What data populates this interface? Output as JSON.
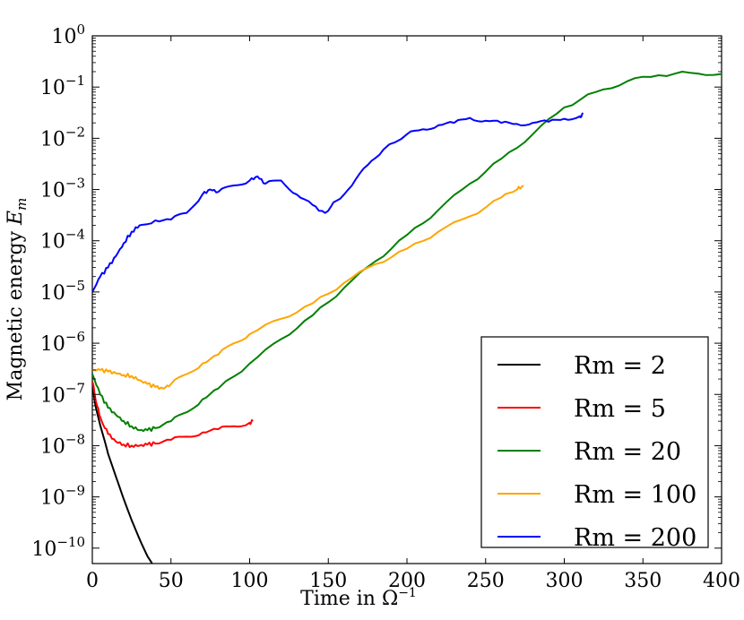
{
  "chart_data": {
    "type": "line",
    "xlabel": "Time in Ω",
    "xlabel_sup": "−1",
    "ylabel": "Magnetic energy",
    "ylabel_var": "E",
    "ylabel_sub": "m",
    "xlim": [
      0,
      400
    ],
    "ylim": [
      5e-11,
      1
    ],
    "yscale": "log",
    "grid": false,
    "legend_position": "bottom-right",
    "x_ticks": [
      {
        "value": 0,
        "label": "0"
      },
      {
        "value": 50,
        "label": "50"
      },
      {
        "value": 100,
        "label": "100"
      },
      {
        "value": 150,
        "label": "150"
      },
      {
        "value": 200,
        "label": "200"
      },
      {
        "value": 250,
        "label": "250"
      },
      {
        "value": 300,
        "label": "300"
      },
      {
        "value": 350,
        "label": "350"
      },
      {
        "value": 400,
        "label": "400"
      }
    ],
    "y_ticks": [
      {
        "exp": -10,
        "base": "10",
        "sup": "−10"
      },
      {
        "exp": -9,
        "base": "10",
        "sup": "−9"
      },
      {
        "exp": -8,
        "base": "10",
        "sup": "−8"
      },
      {
        "exp": -7,
        "base": "10",
        "sup": "−7"
      },
      {
        "exp": -6,
        "base": "10",
        "sup": "−6"
      },
      {
        "exp": -5,
        "base": "10",
        "sup": "−5"
      },
      {
        "exp": -4,
        "base": "10",
        "sup": "−4"
      },
      {
        "exp": -3,
        "base": "10",
        "sup": "−3"
      },
      {
        "exp": -2,
        "base": "10",
        "sup": "−2"
      },
      {
        "exp": -1,
        "base": "10",
        "sup": "−1"
      },
      {
        "exp": 0,
        "base": "10",
        "sup": "0"
      }
    ],
    "series": [
      {
        "name": "Rm = 2",
        "color": "#000000",
        "x": [
          0,
          2,
          5,
          8,
          10,
          15,
          20,
          25,
          30,
          35,
          38,
          40
        ],
        "y": [
          1.5e-07,
          6e-08,
          2.5e-08,
          1.2e-08,
          7e-09,
          2.5e-09,
          9e-10,
          3.5e-10,
          1.5e-10,
          7e-11,
          5e-11,
          4e-11
        ]
      },
      {
        "name": "Rm = 5",
        "color": "#ff0000",
        "x": [
          0,
          3,
          6,
          10,
          15,
          20,
          25,
          30,
          35,
          40,
          50,
          60,
          70,
          80,
          90,
          100,
          102
        ],
        "y": [
          1.8e-07,
          6e-08,
          3e-08,
          1.7e-08,
          1.2e-08,
          1.05e-08,
          1e-08,
          1e-08,
          1.05e-08,
          1.1e-08,
          1.3e-08,
          1.5e-08,
          1.8e-08,
          2.1e-08,
          2.4e-08,
          2.8e-08,
          3e-08
        ]
      },
      {
        "name": "Rm = 20",
        "color": "#008000",
        "x": [
          0,
          5,
          10,
          15,
          20,
          25,
          30,
          35,
          40,
          50,
          60,
          70,
          80,
          100,
          120,
          140,
          160,
          180,
          200,
          220,
          240,
          260,
          280,
          300,
          320,
          340,
          360,
          380,
          400
        ],
        "y": [
          2.5e-07,
          1e-07,
          5.5e-08,
          4e-08,
          3e-08,
          2.4e-08,
          2e-08,
          2e-08,
          2.2e-08,
          3e-08,
          4.5e-08,
          8e-08,
          1.3e-07,
          4e-07,
          1.2e-06,
          3.5e-06,
          1.2e-05,
          4e-05,
          0.00013,
          0.0004,
          0.0013,
          0.004,
          0.012,
          0.04,
          0.08,
          0.13,
          0.17,
          0.19,
          0.18
        ]
      },
      {
        "name": "Rm = 100",
        "color": "#ffa500",
        "x": [
          0,
          5,
          10,
          15,
          20,
          25,
          30,
          35,
          40,
          45,
          50,
          60,
          70,
          80,
          90,
          100,
          120,
          140,
          160,
          180,
          200,
          220,
          240,
          260,
          270,
          274
        ],
        "y": [
          3e-07,
          3e-07,
          2.8e-07,
          2.6e-07,
          2.4e-07,
          2.3e-07,
          1.9e-07,
          1.6e-07,
          1.4e-07,
          1.3e-07,
          1.6e-07,
          2.5e-07,
          4e-07,
          6e-07,
          1e-06,
          1.5e-06,
          3e-06,
          6e-06,
          1.5e-05,
          3.5e-05,
          7e-05,
          0.00015,
          0.0003,
          0.0007,
          0.001,
          0.0012
        ]
      },
      {
        "name": "Rm = 200",
        "color": "#0000ff",
        "x": [
          0,
          5,
          10,
          15,
          20,
          25,
          30,
          40,
          50,
          60,
          70,
          75,
          80,
          90,
          100,
          105,
          110,
          120,
          130,
          140,
          148,
          155,
          165,
          175,
          185,
          200,
          210,
          220,
          230,
          240,
          250,
          260,
          270,
          280,
          290,
          300,
          310,
          312
        ],
        "y": [
          1e-05,
          2e-05,
          3e-05,
          5e-05,
          9e-05,
          0.00015,
          0.0002,
          0.00025,
          0.00026,
          0.00035,
          0.0008,
          0.001,
          0.0009,
          0.0012,
          0.0015,
          0.0018,
          0.0013,
          0.0015,
          0.0008,
          0.0005,
          0.00035,
          0.0006,
          0.0012,
          0.003,
          0.006,
          0.012,
          0.015,
          0.018,
          0.02,
          0.025,
          0.022,
          0.02,
          0.019,
          0.02,
          0.021,
          0.024,
          0.027,
          0.03
        ]
      }
    ]
  }
}
